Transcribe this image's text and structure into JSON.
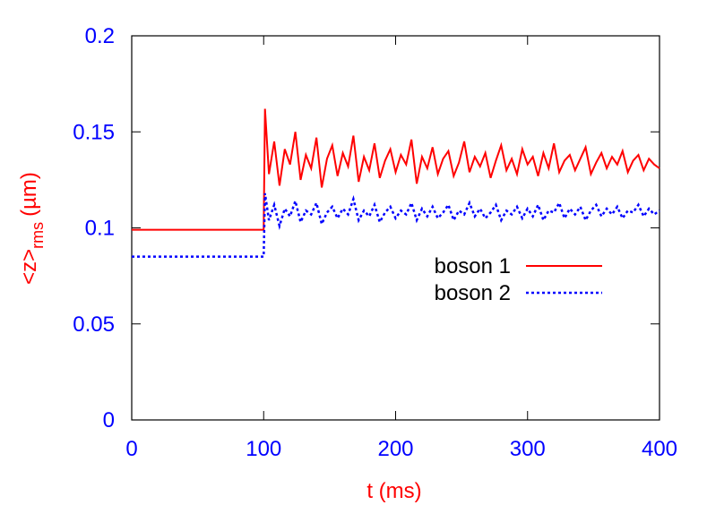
{
  "chart_data": {
    "type": "line",
    "xlabel": "t (ms)",
    "ylabel": "<z>",
    "ylabel_sub": "rms",
    "ylabel_unit": "(µm)",
    "x": [
      0,
      100,
      101,
      104,
      108,
      112,
      116,
      120,
      124,
      128,
      132,
      136,
      140,
      144,
      148,
      152,
      156,
      160,
      164,
      168,
      172,
      176,
      180,
      184,
      188,
      192,
      196,
      200,
      204,
      208,
      212,
      216,
      220,
      224,
      228,
      232,
      236,
      240,
      244,
      248,
      252,
      256,
      260,
      264,
      268,
      272,
      276,
      280,
      284,
      288,
      292,
      296,
      300,
      304,
      308,
      312,
      316,
      320,
      324,
      328,
      332,
      336,
      340,
      344,
      348,
      352,
      356,
      360,
      364,
      368,
      372,
      376,
      380,
      384,
      388,
      392,
      396,
      400
    ],
    "series": [
      {
        "name": "boson 1",
        "color": "#ff0000",
        "dash": false,
        "values": [
          0.099,
          0.099,
          0.162,
          0.128,
          0.145,
          0.122,
          0.141,
          0.133,
          0.15,
          0.125,
          0.138,
          0.131,
          0.147,
          0.121,
          0.136,
          0.143,
          0.127,
          0.139,
          0.132,
          0.148,
          0.124,
          0.137,
          0.13,
          0.144,
          0.126,
          0.135,
          0.141,
          0.129,
          0.138,
          0.133,
          0.146,
          0.123,
          0.137,
          0.131,
          0.142,
          0.128,
          0.136,
          0.14,
          0.127,
          0.134,
          0.145,
          0.129,
          0.137,
          0.132,
          0.139,
          0.126,
          0.135,
          0.143,
          0.13,
          0.136,
          0.128,
          0.141,
          0.133,
          0.137,
          0.127,
          0.139,
          0.131,
          0.144,
          0.129,
          0.135,
          0.138,
          0.13,
          0.136,
          0.142,
          0.128,
          0.134,
          0.139,
          0.131,
          0.137,
          0.133,
          0.14,
          0.129,
          0.135,
          0.138,
          0.13,
          0.136,
          0.133,
          0.131
        ]
      },
      {
        "name": "boson 2",
        "color": "#0000ff",
        "dash": true,
        "values": [
          0.085,
          0.085,
          0.118,
          0.104,
          0.112,
          0.101,
          0.11,
          0.106,
          0.114,
          0.103,
          0.109,
          0.107,
          0.113,
          0.102,
          0.108,
          0.111,
          0.105,
          0.11,
          0.107,
          0.115,
          0.104,
          0.109,
          0.106,
          0.112,
          0.103,
          0.108,
          0.111,
          0.105,
          0.109,
          0.107,
          0.113,
          0.104,
          0.11,
          0.106,
          0.111,
          0.105,
          0.108,
          0.112,
          0.104,
          0.109,
          0.107,
          0.113,
          0.106,
          0.11,
          0.105,
          0.108,
          0.112,
          0.104,
          0.109,
          0.107,
          0.111,
          0.105,
          0.11,
          0.106,
          0.112,
          0.104,
          0.109,
          0.108,
          0.113,
          0.105,
          0.11,
          0.107,
          0.111,
          0.104,
          0.109,
          0.112,
          0.106,
          0.11,
          0.107,
          0.111,
          0.105,
          0.109,
          0.108,
          0.112,
          0.106,
          0.11,
          0.107,
          0.109
        ]
      }
    ],
    "xlim": [
      0,
      400
    ],
    "xticks": [
      0,
      100,
      200,
      300,
      400
    ],
    "ylim": [
      0,
      0.2
    ],
    "yticks": [
      0,
      0.05,
      0.1,
      0.15,
      0.2
    ],
    "tick_color": "#0000ff",
    "label_color": "#ff0000"
  }
}
